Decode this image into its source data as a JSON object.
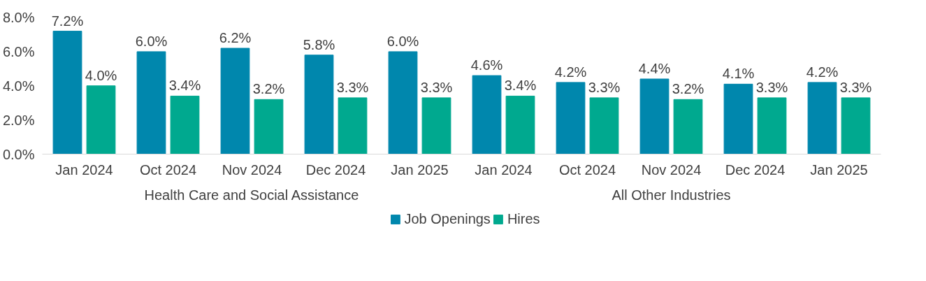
{
  "chart_data": {
    "type": "bar",
    "categories": [
      "Jan 2024",
      "Oct 2024",
      "Nov 2024",
      "Dec 2024",
      "Jan 2025",
      "Jan 2024",
      "Oct 2024",
      "Nov 2024",
      "Dec 2024",
      "Jan 2025"
    ],
    "series": [
      {
        "name": "Job Openings",
        "color": "#0087ad",
        "values": [
          7.2,
          6.0,
          6.2,
          5.8,
          6.0,
          4.6,
          4.2,
          4.4,
          4.1,
          4.2
        ],
        "value_labels": [
          "7.2%",
          "6.0%",
          "6.2%",
          "5.8%",
          "6.0%",
          "4.6%",
          "4.2%",
          "4.4%",
          "4.1%",
          "4.2%"
        ]
      },
      {
        "name": "Hires",
        "color": "#00a98f",
        "values": [
          4.0,
          3.4,
          3.2,
          3.3,
          3.3,
          3.4,
          3.3,
          3.2,
          3.3,
          3.3
        ],
        "value_labels": [
          "4.0%",
          "3.4%",
          "3.2%",
          "3.3%",
          "3.3%",
          "3.4%",
          "3.3%",
          "3.2%",
          "3.3%",
          "3.3%"
        ]
      }
    ],
    "annotations": [
      "Health Care and Social Assistance",
      "All Other Industries"
    ],
    "ylim": [
      0,
      8
    ],
    "yticks": [
      {
        "value": 0,
        "label": "0.0%"
      },
      {
        "value": 2,
        "label": "2.0%"
      },
      {
        "value": 4,
        "label": "4.0%"
      },
      {
        "value": 6,
        "label": "6.0%"
      },
      {
        "value": 8,
        "label": "8.0%"
      }
    ],
    "grid": false,
    "legend": "bottom"
  }
}
